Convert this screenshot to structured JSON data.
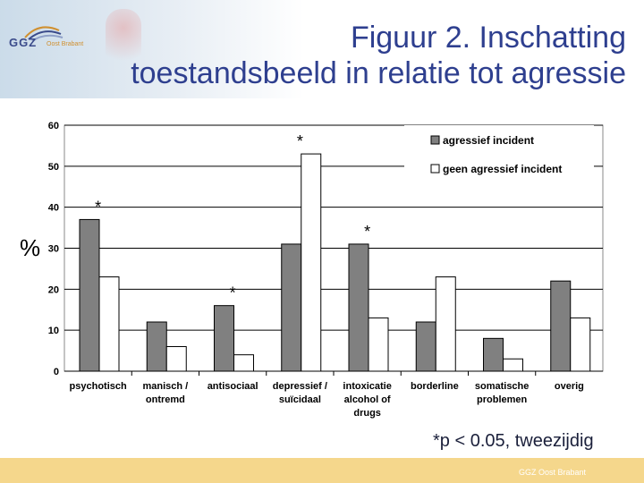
{
  "header": {
    "logo_text": "GGZ",
    "logo_sub": "Oost Brabant",
    "title_line1": "Figuur 2. Inschatting",
    "title_line2": "toestandsbeeld in relatie tot agressie"
  },
  "chart_data": {
    "type": "bar",
    "title": "",
    "ylabel": "%",
    "xlabel": "",
    "ylim": [
      0,
      60
    ],
    "yticks": [
      0,
      10,
      20,
      30,
      40,
      50,
      60
    ],
    "grid": true,
    "legend_position": "top-right",
    "categories": [
      "psychotisch",
      "manisch / ontremd",
      "antisociaal",
      "depressief / suïcidaal",
      "intoxicatie alcohol of drugs",
      "borderline",
      "somatische problemen",
      "overig"
    ],
    "category_lines": [
      [
        "psychotisch"
      ],
      [
        "manisch /",
        "ontremd"
      ],
      [
        "antisociaal"
      ],
      [
        "depressief /",
        "suïcidaal"
      ],
      [
        "intoxicatie",
        "alcohol of",
        "drugs"
      ],
      [
        "borderline"
      ],
      [
        "somatische",
        "problemen"
      ],
      [
        "overig"
      ]
    ],
    "series": [
      {
        "name": "agressief incident",
        "color": "#808080",
        "values": [
          37,
          12,
          16,
          31,
          31,
          12,
          8,
          22
        ]
      },
      {
        "name": "geen agressief incident",
        "color": "#ffffff",
        "values": [
          23,
          6,
          4,
          53,
          13,
          23,
          3,
          13
        ]
      }
    ],
    "significance_marker": "*",
    "significant_categories": [
      "psychotisch",
      "antisociaal",
      "depressief / suïcidaal",
      "intoxicatie alcohol of drugs"
    ]
  },
  "note": "*p < 0.05, tweezijdig",
  "footer": "GGZ Oost Brabant",
  "colors": {
    "title": "#2e3f8f",
    "footer_bar": "#f5d78c"
  }
}
